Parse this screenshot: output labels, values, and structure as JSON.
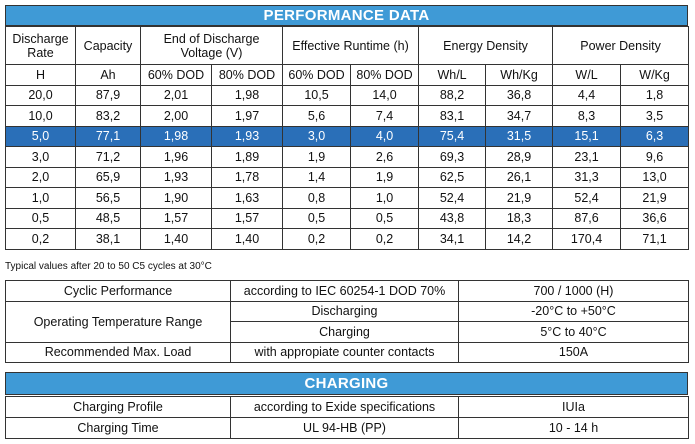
{
  "performance": {
    "title": "PERFORMANCE DATA",
    "headers": {
      "discharge_rate": "Discharge Rate",
      "capacity": "Capacity",
      "end_voltage": "End of Discharge Voltage (V)",
      "runtime": "Effective Runtime (h)",
      "energy_density": "Energy Density",
      "power_density": "Power Density"
    },
    "units": [
      "H",
      "Ah",
      "60% DOD",
      "80% DOD",
      "60% DOD",
      "80% DOD",
      "Wh/L",
      "Wh/Kg",
      "W/L",
      "W/Kg"
    ],
    "rows": [
      [
        "20,0",
        "87,9",
        "2,01",
        "1,98",
        "10,5",
        "14,0",
        "88,2",
        "36,8",
        "4,4",
        "1,8"
      ],
      [
        "10,0",
        "83,2",
        "2,00",
        "1,97",
        "5,6",
        "7,4",
        "83,1",
        "34,7",
        "8,3",
        "3,5"
      ],
      [
        "5,0",
        "77,1",
        "1,98",
        "1,93",
        "3,0",
        "4,0",
        "75,4",
        "31,5",
        "15,1",
        "6,3"
      ],
      [
        "3,0",
        "71,2",
        "1,96",
        "1,89",
        "1,9",
        "2,6",
        "69,3",
        "28,9",
        "23,1",
        "9,6"
      ],
      [
        "2,0",
        "65,9",
        "1,93",
        "1,78",
        "1,4",
        "1,9",
        "62,5",
        "26,1",
        "31,3",
        "13,0"
      ],
      [
        "1,0",
        "56,5",
        "1,90",
        "1,63",
        "0,8",
        "1,0",
        "52,4",
        "21,9",
        "52,4",
        "21,9"
      ],
      [
        "0,5",
        "48,5",
        "1,57",
        "1,57",
        "0,5",
        "0,5",
        "43,8",
        "18,3",
        "87,6",
        "36,6"
      ],
      [
        "0,2",
        "38,1",
        "1,40",
        "1,40",
        "0,2",
        "0,2",
        "34,1",
        "14,2",
        "170,4",
        "71,1"
      ]
    ],
    "note": "Typical values after 20 to 50 C5 cycles at 30°C"
  },
  "cyclic": {
    "cyclic_label": "Cyclic Performance",
    "cyclic_std": "according to IEC 60254-1 DOD 70%",
    "cyclic_val": "700 / 1000 (H)",
    "temp_label": "Operating Temperature Range",
    "discharging": "Discharging",
    "discharging_val": "-20°C to +50°C",
    "charging": "Charging",
    "charging_val": "5°C to 40°C",
    "load_label": "Recommended Max. Load",
    "load_std": "with appropiate counter contacts",
    "load_val": "150A"
  },
  "charging": {
    "title": "CHARGING",
    "profile_label": "Charging Profile",
    "profile_std": "according to Exide specifications",
    "profile_val": "IUIa",
    "time_label": "Charging Time",
    "time_std": "UL 94-HB (PP)",
    "time_val": "10 - 14 h"
  },
  "colors": {
    "band": "#3f9ad6",
    "highlight_row": "#2a6fb8"
  }
}
